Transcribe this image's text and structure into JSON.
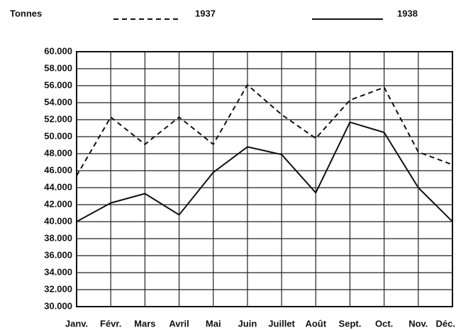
{
  "chart_data": {
    "type": "line",
    "y_axis_label": "Tonnes",
    "categories": [
      "Janv.",
      "Févr.",
      "Mars",
      "Avril",
      "Mai",
      "Juin",
      "Juillet",
      "Août",
      "Sept.",
      "Oct.",
      "Nov.",
      "Déc."
    ],
    "series": [
      {
        "name": "1937",
        "color": "#111111",
        "dash": "dashed",
        "values": [
          45400,
          52300,
          49100,
          52300,
          49100,
          56100,
          52600,
          49800,
          54300,
          55800,
          48200,
          46700
        ]
      },
      {
        "name": "1938",
        "color": "#111111",
        "dash": "solid",
        "values": [
          40000,
          42200,
          43300,
          40800,
          45800,
          48800,
          47900,
          43400,
          51700,
          50500,
          44000,
          40000
        ]
      }
    ],
    "ylim": [
      30000,
      60000
    ],
    "yticks": [
      {
        "value": 30000,
        "label": "30.000"
      },
      {
        "value": 32000,
        "label": "32.000"
      },
      {
        "value": 34000,
        "label": "34.000"
      },
      {
        "value": 36000,
        "label": "36.000"
      },
      {
        "value": 38000,
        "label": "38.000"
      },
      {
        "value": 40000,
        "label": "40.000"
      },
      {
        "value": 42000,
        "label": "42.000"
      },
      {
        "value": 44000,
        "label": "44.000"
      },
      {
        "value": 46000,
        "label": "46.000"
      },
      {
        "value": 48000,
        "label": "48.000"
      },
      {
        "value": 50000,
        "label": "50.000"
      },
      {
        "value": 52000,
        "label": "52.000"
      },
      {
        "value": 54000,
        "label": "54.000"
      },
      {
        "value": 56000,
        "label": "56.000"
      },
      {
        "value": 58000,
        "label": "58.000"
      },
      {
        "value": 60000,
        "label": "60.000"
      }
    ],
    "grid": true
  }
}
